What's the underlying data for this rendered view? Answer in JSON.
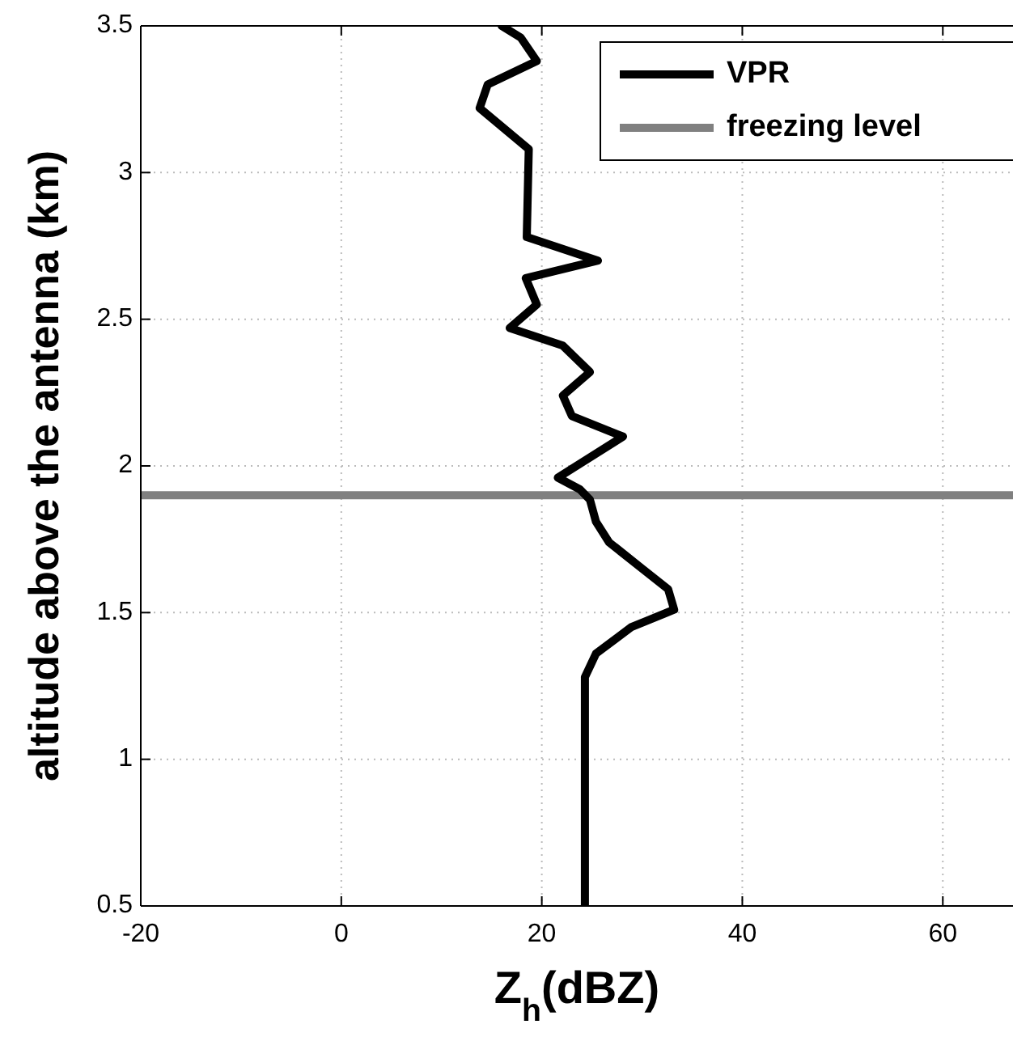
{
  "chart_data": {
    "type": "line",
    "xlabel": "Z$_{h}$(dBZ)",
    "ylabel": "altitude above the antenna (km)",
    "xlim": [
      -20,
      67
    ],
    "xticks": [
      -20,
      0,
      20,
      40,
      60
    ],
    "ylim": [
      0.5,
      3.5
    ],
    "yticks": [
      0.5,
      1,
      1.5,
      2,
      2.5,
      3,
      3.5
    ],
    "grid": true,
    "legend": "top right",
    "line_style": "solid",
    "marker": "none",
    "series": [
      {
        "name": "VPR",
        "color": "#000000",
        "x": [
          24.3,
          24.3,
          25.4,
          28.9,
          33.2,
          32.6,
          30.0,
          26.7,
          25.4,
          24.8,
          23.8,
          21.6,
          28.1,
          23.0,
          22.1,
          24.8,
          22.1,
          16.8,
          19.5,
          18.4,
          25.6,
          18.5,
          18.7,
          13.8,
          14.6,
          19.5,
          17.9,
          16
        ],
        "values": [
          0.5,
          1.28,
          1.36,
          1.45,
          1.51,
          1.58,
          1.65,
          1.74,
          1.81,
          1.885,
          1.92,
          1.96,
          2.1,
          2.17,
          2.24,
          2.32,
          2.41,
          2.47,
          2.55,
          2.64,
          2.7,
          2.78,
          3.08,
          3.22,
          3.3,
          3.38,
          3.46,
          3.5
        ]
      }
    ],
    "ref_lines": [
      {
        "axis": "y",
        "value": 1.9,
        "label": "freezing level",
        "color": "#808080",
        "line_style": "solid"
      }
    ]
  }
}
